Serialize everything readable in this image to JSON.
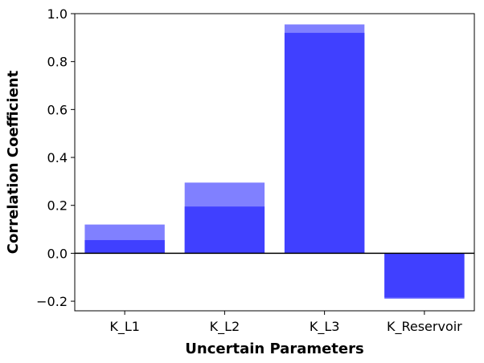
{
  "chart_data": {
    "type": "bar",
    "xlabel": "Uncertain Parameters",
    "ylabel": "Correlation Coefficient",
    "categories": [
      "K_L1",
      "K_L2",
      "K_L3",
      "K_Reservoir"
    ],
    "series": [
      {
        "values": [
          0.12,
          0.295,
          0.955,
          -0.19
        ],
        "color": "#8080ff"
      },
      {
        "values": [
          0.055,
          0.195,
          0.92,
          -0.185
        ],
        "color": "#4040ff"
      }
    ],
    "ylim": [
      -0.24,
      1.0
    ],
    "yticks": [
      -0.2,
      0.0,
      0.2,
      0.4,
      0.6,
      0.8,
      1.0
    ],
    "ytick_labels": [
      "−0.2",
      "0.0",
      "0.2",
      "0.4",
      "0.6",
      "0.8",
      "1.0"
    ],
    "grid": false,
    "zero_line": true
  }
}
